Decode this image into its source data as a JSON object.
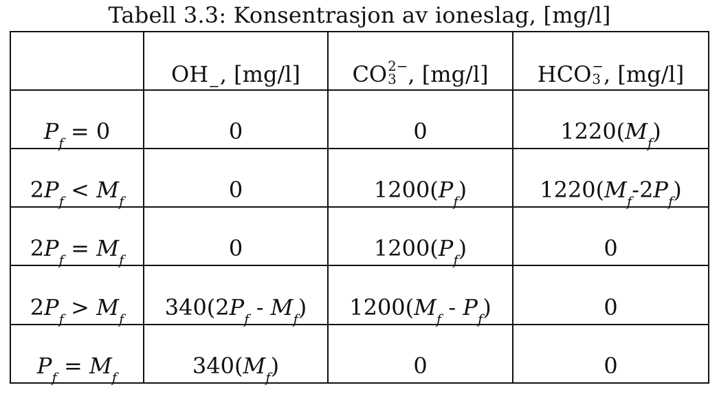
{
  "caption": "Tabell 3.3: Konsentrasjon av ioneslag, [mg/l]",
  "header": {
    "corner": "",
    "oh": {
      "ion": "OH",
      "charge": "−",
      "unit": ", [mg/l]"
    },
    "co3": {
      "ion": "CO",
      "sub": "3",
      "charge": "2−",
      "unit": ", [mg/l]"
    },
    "hco3": {
      "ion": "HCO",
      "sub": "3",
      "charge": "−",
      "unit": ", [mg/l]"
    }
  },
  "rows": [
    {
      "cond": {
        "a": "",
        "P": "P",
        "f": "f",
        "op": "=",
        "b": "0"
      },
      "oh": {
        "text": "0"
      },
      "co3": {
        "text": "0"
      },
      "hco3": {
        "coef": "1220(",
        "M": "M",
        "f": "f",
        "close": " )"
      }
    },
    {
      "cond": {
        "a": "2",
        "P": "P",
        "f": "f",
        "op": "<",
        "M": "M",
        "f2": "f"
      },
      "oh": {
        "text": "0"
      },
      "co3": {
        "coef": "1200(",
        "P": "P",
        "f": "f",
        "close": " )"
      },
      "hco3": {
        "coef": "1220(",
        "M": "M",
        "f": "f",
        "mid": " -2",
        "P": "P",
        "f2": "f",
        "close": " )"
      }
    },
    {
      "cond": {
        "a": "2",
        "P": "P",
        "f": "f",
        "op": "=",
        "M": "M",
        "f2": "f"
      },
      "oh": {
        "text": "0"
      },
      "co3": {
        "coef": "1200(",
        "P": "P",
        "f": "f",
        "close": " )"
      },
      "hco3": {
        "text": "0"
      }
    },
    {
      "cond": {
        "a": "2",
        "P": "P",
        "f": "f",
        "op": ">",
        "M": "M",
        "f2": "f"
      },
      "oh": {
        "coef": "340(2",
        "P": "P",
        "f": "f",
        "mid": " - ",
        "M": "M",
        "f2": "f",
        "close": " )"
      },
      "co3": {
        "coef": "1200(",
        "M": "M",
        "f": "f",
        "mid": " - ",
        "P": "P",
        "f2": "f",
        "close": " )"
      },
      "hco3": {
        "text": "0"
      }
    },
    {
      "cond": {
        "a": "",
        "P": "P",
        "f": "f",
        "op": "=",
        "M": "M",
        "f2": "f"
      },
      "oh": {
        "coef": "340(",
        "M": "M",
        "f": "f",
        "close": " )"
      },
      "co3": {
        "text": "0"
      },
      "hco3": {
        "text": "0"
      }
    }
  ]
}
